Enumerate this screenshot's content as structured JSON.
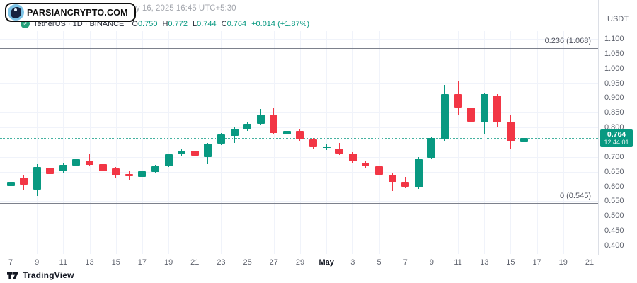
{
  "watermark": {
    "brand_badge": "PARSIANCRYPTO.COM",
    "attribution": "TradingView.com, May 16, 2025 16:45 UTC+5:30"
  },
  "legend": {
    "symbol_line": "TetherUS · 1D · BINANCE",
    "ohlc": [
      {
        "k": "O",
        "v": "0.750"
      },
      {
        "k": "H",
        "v": "0.772"
      },
      {
        "k": "L",
        "v": "0.744"
      },
      {
        "k": "C",
        "v": "0.764"
      }
    ],
    "change": "+0.014 (+1.87%)"
  },
  "price_axis": {
    "currency": "USDT",
    "labels": [
      "1.100",
      "1.050",
      "1.000",
      "0.950",
      "0.900",
      "0.850",
      "0.800",
      "0.700",
      "0.650",
      "0.600",
      "0.550",
      "0.500",
      "0.450",
      "0.400"
    ],
    "last_price": "0.764",
    "countdown": "12:44:01"
  },
  "time_axis": {
    "labels": [
      {
        "text": "7",
        "day": 0
      },
      {
        "text": "9",
        "day": 2
      },
      {
        "text": "11",
        "day": 4
      },
      {
        "text": "13",
        "day": 6
      },
      {
        "text": "15",
        "day": 8
      },
      {
        "text": "17",
        "day": 10
      },
      {
        "text": "19",
        "day": 12
      },
      {
        "text": "21",
        "day": 14
      },
      {
        "text": "23",
        "day": 16
      },
      {
        "text": "25",
        "day": 18
      },
      {
        "text": "27",
        "day": 20
      },
      {
        "text": "29",
        "day": 22
      },
      {
        "text": "May",
        "day": 24,
        "bold": true
      },
      {
        "text": "3",
        "day": 26
      },
      {
        "text": "5",
        "day": 28
      },
      {
        "text": "7",
        "day": 30
      },
      {
        "text": "9",
        "day": 32
      },
      {
        "text": "11",
        "day": 34
      },
      {
        "text": "13",
        "day": 36
      },
      {
        "text": "15",
        "day": 38
      },
      {
        "text": "17",
        "day": 40
      },
      {
        "text": "19",
        "day": 42
      },
      {
        "text": "21",
        "day": 44
      }
    ]
  },
  "fib_levels": [
    {
      "label": "0.236 (1.068)",
      "price": 1.068,
      "thickness": 1
    },
    {
      "label": "0 (0.545)",
      "price": 0.545,
      "thickness": 2
    }
  ],
  "footer": {
    "brand": "TradingView"
  },
  "colors": {
    "up": "#089981",
    "down": "#f23645",
    "badge": "#089981",
    "tether_icon": "#26a17b",
    "fib_line": "#7d818c",
    "grid": "#f0f3fa"
  },
  "chart_data": {
    "type": "candlestick",
    "title": "TetherUS · 1D · BINANCE",
    "currency": "USDT",
    "ylim": [
      0.4,
      1.1
    ],
    "grid": true,
    "last_price": 0.764,
    "fib_levels": [
      1.068,
      0.545
    ],
    "candles": [
      {
        "d": 0,
        "date": "Apr 7",
        "o": 0.601,
        "h": 0.64,
        "l": 0.553,
        "c": 0.616
      },
      {
        "d": 1,
        "date": "Apr 8",
        "o": 0.629,
        "h": 0.637,
        "l": 0.589,
        "c": 0.605
      },
      {
        "d": 2,
        "date": "Apr 9",
        "o": 0.589,
        "h": 0.676,
        "l": 0.568,
        "c": 0.666
      },
      {
        "d": 3,
        "date": "Apr 10",
        "o": 0.664,
        "h": 0.669,
        "l": 0.625,
        "c": 0.642
      },
      {
        "d": 4,
        "date": "Apr 11",
        "o": 0.652,
        "h": 0.679,
        "l": 0.647,
        "c": 0.673
      },
      {
        "d": 5,
        "date": "Apr 12",
        "o": 0.67,
        "h": 0.698,
        "l": 0.665,
        "c": 0.693
      },
      {
        "d": 6,
        "date": "Apr 13",
        "o": 0.688,
        "h": 0.712,
        "l": 0.668,
        "c": 0.673
      },
      {
        "d": 7,
        "date": "Apr 14",
        "o": 0.676,
        "h": 0.682,
        "l": 0.647,
        "c": 0.652
      },
      {
        "d": 8,
        "date": "Apr 15",
        "o": 0.661,
        "h": 0.666,
        "l": 0.63,
        "c": 0.637
      },
      {
        "d": 9,
        "date": "Apr 16",
        "o": 0.641,
        "h": 0.655,
        "l": 0.621,
        "c": 0.634
      },
      {
        "d": 10,
        "date": "Apr 17",
        "o": 0.633,
        "h": 0.657,
        "l": 0.628,
        "c": 0.652
      },
      {
        "d": 11,
        "date": "Apr 18",
        "o": 0.649,
        "h": 0.674,
        "l": 0.645,
        "c": 0.669
      },
      {
        "d": 12,
        "date": "Apr 19",
        "o": 0.669,
        "h": 0.712,
        "l": 0.665,
        "c": 0.709
      },
      {
        "d": 13,
        "date": "Apr 20",
        "o": 0.709,
        "h": 0.726,
        "l": 0.703,
        "c": 0.721
      },
      {
        "d": 14,
        "date": "Apr 21",
        "o": 0.721,
        "h": 0.727,
        "l": 0.698,
        "c": 0.705
      },
      {
        "d": 15,
        "date": "Apr 22",
        "o": 0.7,
        "h": 0.748,
        "l": 0.676,
        "c": 0.745
      },
      {
        "d": 16,
        "date": "Apr 23",
        "o": 0.745,
        "h": 0.781,
        "l": 0.741,
        "c": 0.777
      },
      {
        "d": 17,
        "date": "Apr 24",
        "o": 0.772,
        "h": 0.8,
        "l": 0.748,
        "c": 0.796
      },
      {
        "d": 18,
        "date": "Apr 25",
        "o": 0.793,
        "h": 0.818,
        "l": 0.789,
        "c": 0.813
      },
      {
        "d": 19,
        "date": "Apr 26",
        "o": 0.813,
        "h": 0.862,
        "l": 0.809,
        "c": 0.844
      },
      {
        "d": 20,
        "date": "Apr 27",
        "o": 0.844,
        "h": 0.866,
        "l": 0.777,
        "c": 0.781
      },
      {
        "d": 21,
        "date": "Apr 28",
        "o": 0.777,
        "h": 0.798,
        "l": 0.771,
        "c": 0.789
      },
      {
        "d": 22,
        "date": "Apr 29",
        "o": 0.789,
        "h": 0.794,
        "l": 0.755,
        "c": 0.76
      },
      {
        "d": 23,
        "date": "Apr 30",
        "o": 0.76,
        "h": 0.764,
        "l": 0.729,
        "c": 0.733
      },
      {
        "d": 24,
        "date": "May 1",
        "o": 0.731,
        "h": 0.743,
        "l": 0.723,
        "c": 0.734
      },
      {
        "d": 25,
        "date": "May 2",
        "o": 0.729,
        "h": 0.748,
        "l": 0.707,
        "c": 0.712
      },
      {
        "d": 26,
        "date": "May 3",
        "o": 0.712,
        "h": 0.717,
        "l": 0.681,
        "c": 0.685
      },
      {
        "d": 27,
        "date": "May 4",
        "o": 0.681,
        "h": 0.687,
        "l": 0.664,
        "c": 0.669
      },
      {
        "d": 28,
        "date": "May 5",
        "o": 0.669,
        "h": 0.674,
        "l": 0.635,
        "c": 0.64
      },
      {
        "d": 29,
        "date": "May 6",
        "o": 0.64,
        "h": 0.645,
        "l": 0.585,
        "c": 0.616
      },
      {
        "d": 30,
        "date": "May 7",
        "o": 0.616,
        "h": 0.633,
        "l": 0.594,
        "c": 0.599
      },
      {
        "d": 31,
        "date": "May 8",
        "o": 0.597,
        "h": 0.7,
        "l": 0.592,
        "c": 0.693
      },
      {
        "d": 32,
        "date": "May 9",
        "o": 0.697,
        "h": 0.769,
        "l": 0.692,
        "c": 0.764
      },
      {
        "d": 33,
        "date": "May 10",
        "o": 0.76,
        "h": 0.944,
        "l": 0.755,
        "c": 0.913
      },
      {
        "d": 34,
        "date": "May 11",
        "o": 0.913,
        "h": 0.956,
        "l": 0.844,
        "c": 0.868
      },
      {
        "d": 35,
        "date": "May 12",
        "o": 0.868,
        "h": 0.916,
        "l": 0.815,
        "c": 0.82
      },
      {
        "d": 36,
        "date": "May 13",
        "o": 0.82,
        "h": 0.918,
        "l": 0.777,
        "c": 0.913
      },
      {
        "d": 37,
        "date": "May 14",
        "o": 0.908,
        "h": 0.913,
        "l": 0.8,
        "c": 0.817
      },
      {
        "d": 38,
        "date": "May 15",
        "o": 0.82,
        "h": 0.844,
        "l": 0.729,
        "c": 0.752
      },
      {
        "d": 39,
        "date": "May 16",
        "o": 0.75,
        "h": 0.772,
        "l": 0.744,
        "c": 0.764
      }
    ]
  }
}
